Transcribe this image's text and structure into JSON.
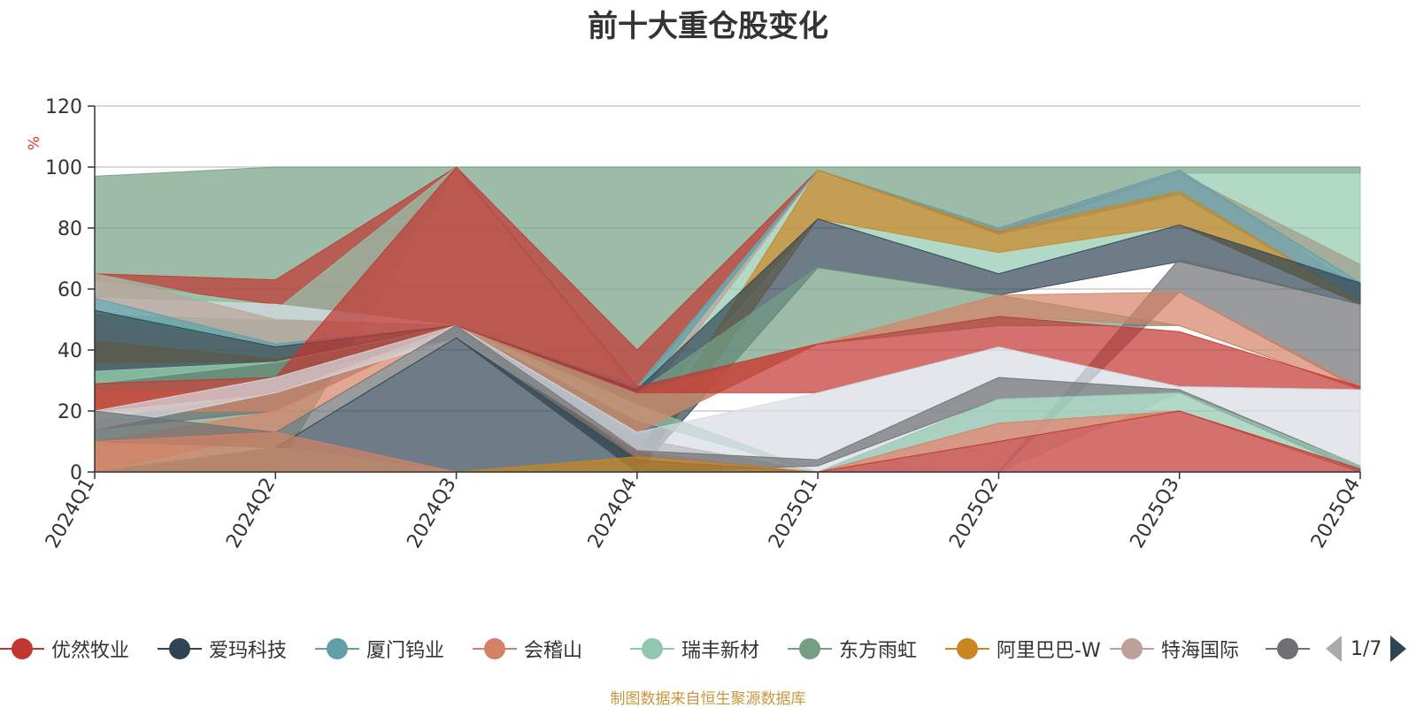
{
  "title": "前十大重仓股变化",
  "source_note": "制图数据来自恒生聚源数据库",
  "pager": {
    "text": "1/7"
  },
  "legend": [
    {
      "label": "优然牧业",
      "color": "#c23531"
    },
    {
      "label": "爱玛科技",
      "color": "#2f4554"
    },
    {
      "label": "厦门钨业",
      "color": "#61a0a8"
    },
    {
      "label": "会稽山",
      "color": "#d48265"
    },
    {
      "label": "瑞丰新材",
      "color": "#91c7ae"
    },
    {
      "label": "东方雨虹",
      "color": "#749f83"
    },
    {
      "label": "阿里巴巴-W",
      "color": "#ca8622"
    },
    {
      "label": "特海国际",
      "color": "#bda29a"
    },
    {
      "label": "",
      "color": "#6e7074"
    }
  ],
  "chart_data": {
    "type": "area",
    "title": "前十大重仓股变化",
    "ylabel": "%",
    "ylim": [
      0,
      120
    ],
    "yticks": [
      0,
      20,
      40,
      60,
      80,
      100,
      120
    ],
    "categories": [
      "2024Q1",
      "2024Q2",
      "2024Q3",
      "2024Q4",
      "2025Q1",
      "2025Q2",
      "2025Q3",
      "2025Q4"
    ],
    "grid": true,
    "legend_position": "bottom",
    "bands": [
      {
        "color": "#749f83",
        "lower": [
          0,
          0,
          100,
          26,
          99,
          78,
          98,
          98
        ],
        "upper": [
          97,
          100,
          100,
          100,
          100,
          100,
          100,
          100
        ]
      },
      {
        "color": "#c23531",
        "lower": [
          63,
          55,
          48,
          27,
          99,
          78,
          98,
          62
        ],
        "upper": [
          65,
          63,
          100,
          40,
          99,
          79,
          98,
          68
        ]
      },
      {
        "color": "#91c7ae",
        "lower": [
          50,
          41,
          48,
          17,
          83,
          65,
          81,
          55
        ],
        "upper": [
          65,
          53,
          100,
          28,
          99,
          78,
          98,
          98
        ]
      },
      {
        "color": "#d7dce2",
        "lower": [
          52,
          50,
          48,
          0,
          0,
          0,
          0,
          0
        ],
        "upper": [
          57,
          55,
          48,
          0,
          0,
          0,
          0,
          0
        ]
      },
      {
        "color": "#bda29a",
        "lower": [
          57,
          41,
          48,
          20,
          99,
          79,
          92,
          56
        ],
        "upper": [
          65,
          50,
          48,
          25,
          99,
          80,
          99,
          60
        ]
      },
      {
        "color": "#61a0a8",
        "lower": [
          53,
          41,
          48,
          24,
          99,
          78,
          91,
          56
        ],
        "upper": [
          57,
          42,
          48,
          28,
          99,
          80,
          99,
          62
        ]
      },
      {
        "color": "#ca8622",
        "lower": [
          36,
          36,
          48,
          0,
          83,
          72,
          81,
          55
        ],
        "upper": [
          43,
          37,
          48,
          5,
          99,
          79,
          92,
          56
        ]
      },
      {
        "color": "#2f4554",
        "lower": [
          29,
          31,
          44,
          0,
          67,
          58,
          69,
          55
        ],
        "upper": [
          53,
          41,
          48,
          27,
          83,
          65,
          81,
          62
        ]
      },
      {
        "color": "#749f83",
        "lower": [
          27,
          26,
          48,
          13,
          42,
          48,
          48,
          27
        ],
        "upper": [
          33,
          36,
          48,
          26,
          67,
          58,
          48,
          27
        ]
      },
      {
        "color": "#6e7074",
        "lower": [
          14,
          20,
          48,
          7,
          0,
          0,
          59,
          27
        ],
        "upper": [
          17,
          26,
          48,
          11,
          0,
          0,
          70,
          55
        ]
      },
      {
        "color": "#91c7ae",
        "lower": [
          29,
          36,
          48,
          17,
          0,
          0,
          0,
          0
        ],
        "upper": [
          33,
          36,
          48,
          22,
          0,
          0,
          0,
          0
        ]
      },
      {
        "color": "#d48265",
        "lower": [
          0,
          13,
          48,
          13,
          42,
          51,
          48,
          27
        ],
        "upper": [
          10,
          20,
          48,
          26,
          42,
          58,
          59,
          28
        ]
      },
      {
        "color": "#d48265",
        "lower": [
          20,
          20,
          48,
          5,
          0,
          10,
          20,
          0
        ],
        "upper": [
          27,
          26,
          48,
          7,
          0,
          16,
          20,
          0
        ]
      },
      {
        "color": "#c23531",
        "lower": [
          20,
          26,
          48,
          26,
          26,
          41,
          28,
          27
        ],
        "upper": [
          29,
          31,
          100,
          28,
          42,
          51,
          46,
          28
        ]
      },
      {
        "color": "#d7dce2",
        "lower": [
          14,
          26,
          44,
          7,
          0,
          0,
          26,
          0
        ],
        "upper": [
          20,
          31,
          48,
          13,
          26,
          41,
          28,
          27
        ]
      },
      {
        "color": "#6e7074",
        "lower": [
          10,
          8,
          44,
          0,
          2,
          24,
          26,
          0
        ],
        "upper": [
          20,
          13,
          48,
          7,
          4,
          31,
          27,
          2
        ]
      },
      {
        "color": "#2f4554",
        "lower": [
          0,
          0,
          0,
          0,
          0,
          0,
          0,
          0
        ],
        "upper": [
          0,
          8,
          44,
          4,
          0,
          0,
          0,
          0
        ]
      },
      {
        "color": "#91c7ae",
        "lower": [
          0,
          0,
          0,
          0,
          0,
          16,
          20,
          0
        ],
        "upper": [
          0,
          0,
          0,
          0,
          0,
          24,
          26,
          2
        ]
      },
      {
        "color": "#ca8622",
        "lower": [
          0,
          0,
          0,
          0,
          0,
          0,
          0,
          0
        ],
        "upper": [
          0,
          0,
          0,
          5,
          0,
          0,
          0,
          0
        ]
      },
      {
        "color": "#749f83",
        "lower": [
          0,
          0,
          0,
          0,
          0,
          0,
          0,
          0
        ],
        "upper": [
          0,
          8,
          0,
          0,
          0,
          0,
          0,
          0
        ]
      },
      {
        "color": "#d48265",
        "lower": [
          0,
          0,
          0,
          0,
          0,
          10,
          20,
          0
        ],
        "upper": [
          10,
          13,
          0,
          0,
          0,
          16,
          20,
          0
        ]
      },
      {
        "color": "#c23531",
        "lower": [
          0,
          0,
          0,
          0,
          0,
          0,
          0,
          0
        ],
        "upper": [
          0,
          0,
          0,
          0,
          0,
          10,
          20,
          1
        ]
      }
    ]
  }
}
